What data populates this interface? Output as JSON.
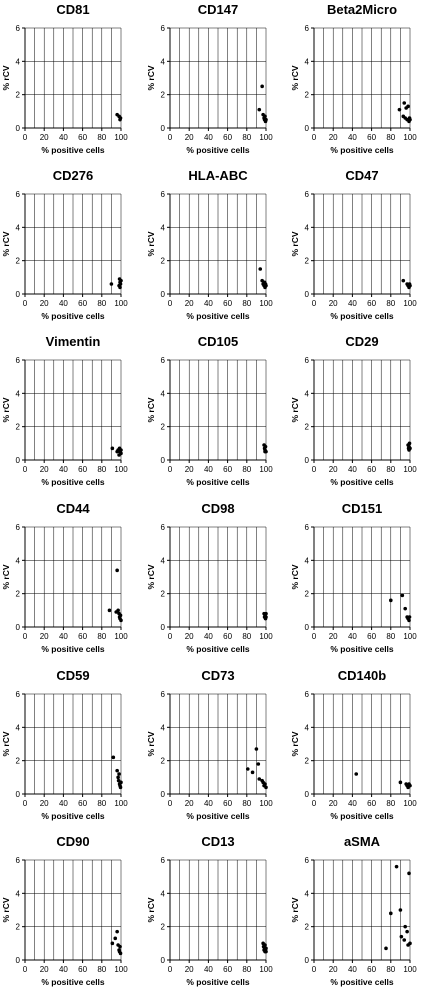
{
  "chart_data": [
    {
      "type": "scatter",
      "title": "CD81",
      "xlabel": "% positive cells",
      "ylabel": "% rCV",
      "xlim": [
        0,
        100
      ],
      "ylim": [
        0,
        6
      ],
      "x_ticks": [
        "0",
        "20",
        "40",
        "60",
        "80",
        "100"
      ],
      "y_ticks": [
        "0",
        "2",
        "4",
        "6"
      ],
      "grid": true,
      "points": [
        [
          96,
          0.8
        ],
        [
          98,
          0.7
        ],
        [
          99,
          0.5
        ],
        [
          99.5,
          0.6
        ]
      ]
    },
    {
      "type": "scatter",
      "title": "CD147",
      "xlabel": "% positive cells",
      "ylabel": "% rCV",
      "xlim": [
        0,
        100
      ],
      "ylim": [
        0,
        6
      ],
      "x_ticks": [
        "0",
        "20",
        "40",
        "60",
        "80",
        "100"
      ],
      "y_ticks": [
        "0",
        "2",
        "4",
        "6"
      ],
      "grid": true,
      "points": [
        [
          93,
          1.1
        ],
        [
          96,
          2.5
        ],
        [
          97,
          0.8
        ],
        [
          98,
          0.6
        ],
        [
          98.5,
          0.5
        ],
        [
          99,
          0.7
        ],
        [
          99.5,
          0.4
        ],
        [
          100,
          0.5
        ]
      ]
    },
    {
      "type": "scatter",
      "title": "Beta2Micro",
      "xlabel": "% positive cells",
      "ylabel": "% rCV",
      "xlim": [
        0,
        100
      ],
      "ylim": [
        0,
        6
      ],
      "x_ticks": [
        "0",
        "20",
        "40",
        "60",
        "80",
        "100"
      ],
      "y_ticks": [
        "0",
        "2",
        "4",
        "6"
      ],
      "grid": true,
      "points": [
        [
          89,
          1.1
        ],
        [
          93,
          0.7
        ],
        [
          94,
          1.5
        ],
        [
          95,
          0.6
        ],
        [
          96,
          1.2
        ],
        [
          97,
          0.5
        ],
        [
          98,
          1.3
        ],
        [
          99,
          0.4
        ],
        [
          99.5,
          0.6
        ],
        [
          100,
          0.5
        ]
      ]
    },
    {
      "type": "scatter",
      "title": "CD276",
      "xlabel": "% positive cells",
      "ylabel": "% rCV",
      "xlim": [
        0,
        100
      ],
      "ylim": [
        0,
        6
      ],
      "x_ticks": [
        "0",
        "20",
        "40",
        "60",
        "80",
        "100"
      ],
      "y_ticks": [
        "0",
        "2",
        "4",
        "6"
      ],
      "grid": true,
      "points": [
        [
          90,
          0.6
        ],
        [
          98,
          0.5
        ],
        [
          98.5,
          0.9
        ],
        [
          99,
          0.7
        ],
        [
          99,
          0.4
        ],
        [
          99.5,
          0.6
        ],
        [
          100,
          0.8
        ]
      ]
    },
    {
      "type": "scatter",
      "title": "HLA-ABC",
      "xlabel": "% positive cells",
      "ylabel": "% rCV",
      "xlim": [
        0,
        100
      ],
      "ylim": [
        0,
        6
      ],
      "x_ticks": [
        "0",
        "20",
        "40",
        "60",
        "80",
        "100"
      ],
      "y_ticks": [
        "0",
        "2",
        "4",
        "6"
      ],
      "grid": true,
      "points": [
        [
          94,
          1.5
        ],
        [
          96,
          0.8
        ],
        [
          97,
          0.6
        ],
        [
          98,
          0.5
        ],
        [
          98.5,
          0.7
        ],
        [
          99,
          0.4
        ],
        [
          99.5,
          0.6
        ],
        [
          100,
          0.5
        ]
      ]
    },
    {
      "type": "scatter",
      "title": "CD47",
      "xlabel": "% positive cells",
      "ylabel": "% rCV",
      "xlim": [
        0,
        100
      ],
      "ylim": [
        0,
        6
      ],
      "x_ticks": [
        "0",
        "20",
        "40",
        "60",
        "80",
        "100"
      ],
      "y_ticks": [
        "0",
        "2",
        "4",
        "6"
      ],
      "grid": true,
      "points": [
        [
          93,
          0.8
        ],
        [
          97,
          0.6
        ],
        [
          98,
          0.5
        ],
        [
          99,
          0.4
        ],
        [
          99.5,
          0.6
        ],
        [
          100,
          0.5
        ]
      ]
    },
    {
      "type": "scatter",
      "title": "Vimentin",
      "xlabel": "% positive cells",
      "ylabel": "% rCV",
      "xlim": [
        0,
        100
      ],
      "ylim": [
        0,
        6
      ],
      "x_ticks": [
        "0",
        "20",
        "40",
        "60",
        "80",
        "100"
      ],
      "y_ticks": [
        "0",
        "2",
        "4",
        "6"
      ],
      "grid": true,
      "points": [
        [
          91,
          0.7
        ],
        [
          96,
          0.5
        ],
        [
          97,
          0.6
        ],
        [
          98,
          0.3
        ],
        [
          98.5,
          0.7
        ],
        [
          99,
          0.5
        ],
        [
          100,
          0.4
        ],
        [
          100,
          0.6
        ]
      ]
    },
    {
      "type": "scatter",
      "title": "CD105",
      "xlabel": "% positive cells",
      "ylabel": "% rCV",
      "xlim": [
        0,
        100
      ],
      "ylim": [
        0,
        6
      ],
      "x_ticks": [
        "0",
        "20",
        "40",
        "60",
        "80",
        "100"
      ],
      "y_ticks": [
        "0",
        "2",
        "4",
        "6"
      ],
      "grid": true,
      "points": [
        [
          98,
          0.9
        ],
        [
          98.5,
          0.7
        ],
        [
          99,
          0.5
        ],
        [
          99,
          0.6
        ],
        [
          99.5,
          0.8
        ],
        [
          100,
          0.5
        ]
      ]
    },
    {
      "type": "scatter",
      "title": "CD29",
      "xlabel": "% positive cells",
      "ylabel": "% rCV",
      "xlim": [
        0,
        100
      ],
      "ylim": [
        0,
        6
      ],
      "x_ticks": [
        "0",
        "20",
        "40",
        "60",
        "80",
        "100"
      ],
      "y_ticks": [
        "0",
        "2",
        "4",
        "6"
      ],
      "grid": true,
      "points": [
        [
          98,
          0.9
        ],
        [
          98.5,
          0.7
        ],
        [
          99,
          0.8
        ],
        [
          99,
          0.6
        ],
        [
          99.5,
          1.0
        ],
        [
          100,
          0.7
        ]
      ]
    },
    {
      "type": "scatter",
      "title": "CD44",
      "xlabel": "% positive cells",
      "ylabel": "% rCV",
      "xlim": [
        0,
        100
      ],
      "ylim": [
        0,
        6
      ],
      "x_ticks": [
        "0",
        "20",
        "40",
        "60",
        "80",
        "100"
      ],
      "y_ticks": [
        "0",
        "2",
        "4",
        "6"
      ],
      "grid": true,
      "points": [
        [
          88,
          1.0
        ],
        [
          95,
          0.9
        ],
        [
          96,
          3.4
        ],
        [
          97,
          1.0
        ],
        [
          98,
          0.8
        ],
        [
          98.5,
          0.6
        ],
        [
          99,
          0.5
        ],
        [
          99.5,
          0.7
        ],
        [
          100,
          0.4
        ]
      ]
    },
    {
      "type": "scatter",
      "title": "CD98",
      "xlabel": "% positive cells",
      "ylabel": "% rCV",
      "xlim": [
        0,
        100
      ],
      "ylim": [
        0,
        6
      ],
      "x_ticks": [
        "0",
        "20",
        "40",
        "60",
        "80",
        "100"
      ],
      "y_ticks": [
        "0",
        "2",
        "4",
        "6"
      ],
      "grid": true,
      "points": [
        [
          98,
          0.8
        ],
        [
          98.5,
          0.6
        ],
        [
          99,
          0.7
        ],
        [
          99.5,
          0.5
        ],
        [
          100,
          0.6
        ],
        [
          100,
          0.8
        ]
      ]
    },
    {
      "type": "scatter",
      "title": "CD151",
      "xlabel": "% positive cells",
      "ylabel": "% rCV",
      "xlim": [
        0,
        100
      ],
      "ylim": [
        0,
        6
      ],
      "x_ticks": [
        "0",
        "20",
        "40",
        "60",
        "80",
        "100"
      ],
      "y_ticks": [
        "0",
        "2",
        "4",
        "6"
      ],
      "grid": true,
      "points": [
        [
          80,
          1.6
        ],
        [
          92,
          1.9
        ],
        [
          95,
          1.1
        ],
        [
          97,
          0.6
        ],
        [
          98,
          0.5
        ],
        [
          99,
          0.4
        ],
        [
          99.5,
          0.6
        ]
      ]
    },
    {
      "type": "scatter",
      "title": "CD59",
      "xlabel": "% positive cells",
      "ylabel": "% rCV",
      "xlim": [
        0,
        100
      ],
      "ylim": [
        0,
        6
      ],
      "x_ticks": [
        "0",
        "20",
        "40",
        "60",
        "80",
        "100"
      ],
      "y_ticks": [
        "0",
        "2",
        "4",
        "6"
      ],
      "grid": true,
      "points": [
        [
          92,
          2.2
        ],
        [
          96,
          1.4
        ],
        [
          97,
          1.0
        ],
        [
          97.5,
          0.8
        ],
        [
          98,
          1.2
        ],
        [
          98.5,
          0.6
        ],
        [
          99,
          0.5
        ],
        [
          99.5,
          0.4
        ],
        [
          100,
          0.7
        ]
      ]
    },
    {
      "type": "scatter",
      "title": "CD73",
      "xlabel": "% positive cells",
      "ylabel": "% rCV",
      "xlim": [
        0,
        100
      ],
      "ylim": [
        0,
        6
      ],
      "x_ticks": [
        "0",
        "20",
        "40",
        "60",
        "80",
        "100"
      ],
      "y_ticks": [
        "0",
        "2",
        "4",
        "6"
      ],
      "grid": true,
      "points": [
        [
          81,
          1.5
        ],
        [
          86,
          1.3
        ],
        [
          90,
          2.7
        ],
        [
          92,
          1.8
        ],
        [
          93,
          0.9
        ],
        [
          96,
          0.8
        ],
        [
          97,
          0.7
        ],
        [
          98,
          0.5
        ],
        [
          99,
          0.6
        ],
        [
          100,
          0.4
        ]
      ]
    },
    {
      "type": "scatter",
      "title": "CD140b",
      "xlabel": "% positive cells",
      "ylabel": "% rCV",
      "xlim": [
        0,
        100
      ],
      "ylim": [
        0,
        6
      ],
      "x_ticks": [
        "0",
        "20",
        "40",
        "60",
        "80",
        "100"
      ],
      "y_ticks": [
        "0",
        "2",
        "4",
        "6"
      ],
      "grid": true,
      "points": [
        [
          44,
          1.2
        ],
        [
          90,
          0.7
        ],
        [
          96,
          0.6
        ],
        [
          97,
          0.5
        ],
        [
          98,
          0.4
        ],
        [
          99,
          0.6
        ],
        [
          99.5,
          0.5
        ],
        [
          100,
          0.5
        ]
      ]
    },
    {
      "type": "scatter",
      "title": "CD90",
      "xlabel": "% positive cells",
      "ylabel": "% rCV",
      "xlim": [
        0,
        100
      ],
      "ylim": [
        0,
        6
      ],
      "x_ticks": [
        "0",
        "20",
        "40",
        "60",
        "80",
        "100"
      ],
      "y_ticks": [
        "0",
        "2",
        "4",
        "6"
      ],
      "grid": true,
      "points": [
        [
          91,
          1.0
        ],
        [
          94,
          1.3
        ],
        [
          96,
          1.7
        ],
        [
          97,
          0.9
        ],
        [
          98,
          0.6
        ],
        [
          98.5,
          0.5
        ],
        [
          99,
          0.8
        ],
        [
          99.5,
          0.4
        ]
      ]
    },
    {
      "type": "scatter",
      "title": "CD13",
      "xlabel": "% positive cells",
      "ylabel": "% rCV",
      "xlim": [
        0,
        100
      ],
      "ylim": [
        0,
        6
      ],
      "x_ticks": [
        "0",
        "20",
        "40",
        "60",
        "80",
        "100"
      ],
      "y_ticks": [
        "0",
        "2",
        "4",
        "6"
      ],
      "grid": true,
      "points": [
        [
          97,
          1.0
        ],
        [
          97.5,
          0.8
        ],
        [
          98,
          0.6
        ],
        [
          98.5,
          0.7
        ],
        [
          99,
          0.5
        ],
        [
          99,
          0.9
        ],
        [
          99.5,
          0.6
        ],
        [
          100,
          0.5
        ],
        [
          100,
          0.7
        ]
      ]
    },
    {
      "type": "scatter",
      "title": "aSMA",
      "xlabel": "% positive cells",
      "ylabel": "% rCV",
      "xlim": [
        0,
        100
      ],
      "ylim": [
        0,
        6
      ],
      "x_ticks": [
        "0",
        "20",
        "40",
        "60",
        "80",
        "100"
      ],
      "y_ticks": [
        "0",
        "2",
        "4",
        "6"
      ],
      "grid": true,
      "points": [
        [
          75,
          0.7
        ],
        [
          80,
          2.8
        ],
        [
          86,
          5.6
        ],
        [
          90,
          3.0
        ],
        [
          91,
          1.4
        ],
        [
          94,
          1.2
        ],
        [
          95,
          2.0
        ],
        [
          97,
          1.7
        ],
        [
          98,
          0.9
        ],
        [
          99,
          5.2
        ],
        [
          100,
          1.0
        ]
      ]
    }
  ]
}
